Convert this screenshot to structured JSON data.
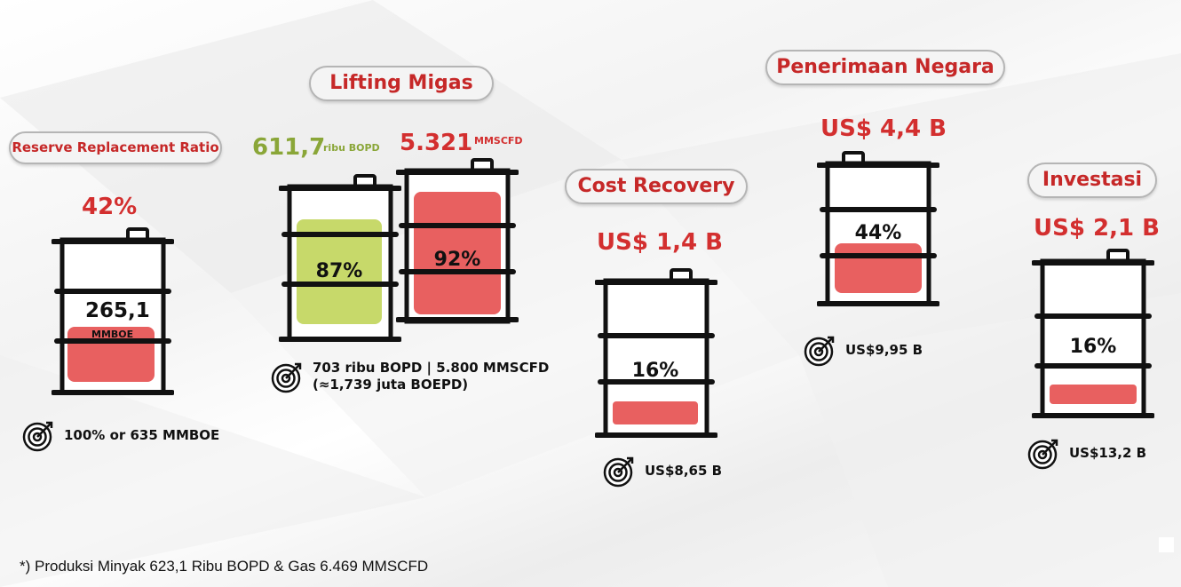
{
  "rrr": {
    "title": "Reserve Replacement Ratio",
    "value": "42%",
    "barrel_value": "265,1",
    "barrel_unit": "MMBOE",
    "target": "100%  or 635 MMBOE",
    "fill_fraction": 0.42
  },
  "lifting": {
    "title": "Lifting Migas",
    "oil_value": "611,7",
    "oil_unit": "ribu BOPD",
    "gas_value": "5.321",
    "gas_unit": "MMSCFD",
    "oil_pct": "87%",
    "gas_pct": "92%",
    "oil_fraction": 0.87,
    "gas_fraction": 0.92,
    "target_line1": "703 ribu BOPD | 5.800 MMSCFD",
    "target_line2": "(≈1,739 juta BOEPD)"
  },
  "cost_recovery": {
    "title": "Cost Recovery",
    "value": "US$ 1,4 B",
    "pct": "16%",
    "fraction": 0.16,
    "target": "US$8,65 B"
  },
  "penerimaan": {
    "title": "Penerimaan Negara",
    "value": "US$ 4,4 B",
    "pct": "44%",
    "fraction": 0.44,
    "target": "US$9,95 B"
  },
  "investasi": {
    "title": "Investasi",
    "value": "US$ 2,1 B",
    "pct": "16%",
    "fraction": 0.16,
    "target": "US$13,2 B"
  },
  "footnote": "*) Produksi Minyak 623,1 Ribu BOPD & Gas 6.469 MMSCFD",
  "colors": {
    "accent_red": "#d32f2f",
    "fill_red": "#e86060",
    "fill_green": "#c7d96a",
    "value_green": "#8aa638"
  },
  "icons": {
    "target": "target-icon",
    "barrel": "barrel-icon"
  }
}
